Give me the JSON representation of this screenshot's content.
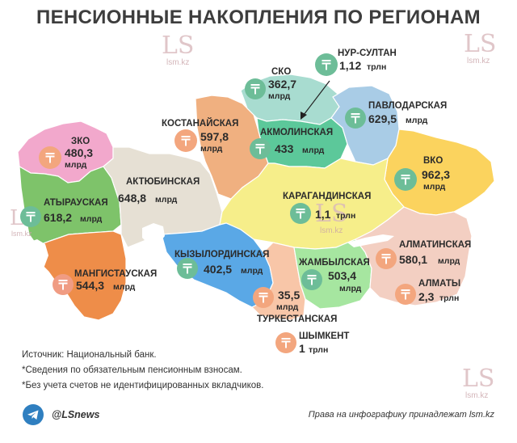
{
  "title": "ПЕНСИОННЫЕ НАКОПЛЕНИЯ ПО РЕГИОНАМ",
  "regions": {
    "zko": {
      "name": "ЗКО",
      "value": "480,3",
      "unit": "млрд"
    },
    "atyrau": {
      "name": "АТЫРАУСКАЯ",
      "value": "618,2",
      "unit": "млрд"
    },
    "mangystau": {
      "name": "МАНГИСТАУСКАЯ",
      "value": "544,3",
      "unit": "млрд"
    },
    "aktobe": {
      "name": "АКТЮБИНСКАЯ",
      "value": "648,8",
      "unit": "млрд"
    },
    "kostanay": {
      "name": "КОСТАНАЙСКАЯ",
      "value": "597,8",
      "unit": "млрд"
    },
    "sko": {
      "name": "СКО",
      "value": "362,7",
      "unit": "млрд"
    },
    "nur_sultan": {
      "name": "НУР-СУЛТАН",
      "value": "1,12",
      "unit": "трлн"
    },
    "akmola": {
      "name": "АКМОЛИНСКАЯ",
      "value": "433",
      "unit": "млрд"
    },
    "pavlodar": {
      "name": "ПАВЛОДАРСКАЯ",
      "value": "629,5",
      "unit": "млрд"
    },
    "vko": {
      "name": "ВКО",
      "value": "962,3",
      "unit": "млрд"
    },
    "karaganda": {
      "name": "КАРАГАНДИНСКАЯ",
      "value": "1,1",
      "unit": "трлн"
    },
    "kyzylorda": {
      "name": "КЫЗЫЛОРДИНСКАЯ",
      "value": "402,5",
      "unit": "млрд"
    },
    "zhambyl": {
      "name": "ЖАМБЫЛСКАЯ",
      "value": "503,4",
      "unit": "млрд"
    },
    "almaty_region": {
      "name": "АЛМАТИНСКАЯ",
      "value": "580,1",
      "unit": "млрд"
    },
    "almaty_city": {
      "name": "АЛМАТЫ",
      "value": "2,3",
      "unit": "трлн"
    },
    "turkestan": {
      "name": "ТУРКЕСТАНСКАЯ",
      "value": "35,5",
      "unit": "млрд"
    },
    "shymkent": {
      "name": "ШЫМКЕНТ",
      "value": "1",
      "unit": "трлн"
    }
  },
  "colors": {
    "zko": "#f2a8cc",
    "atyrau": "#7ec36a",
    "mangystau": "#ee8d49",
    "aktobe": "#e6e0d4",
    "kostanay": "#f0b080",
    "sko": "#a8dcd0",
    "akmola": "#5cc89a",
    "pavlodar": "#a9cce6",
    "vko": "#fbd35e",
    "karaganda": "#f6ee8a",
    "kyzylorda": "#5aa8e6",
    "zhambyl": "#a6e6a0",
    "almaty_region": "#f3cfc2",
    "turkestan": "#f8c6a8",
    "tenge_badge": "#6dbd98",
    "tenge_badge_orange": "#f3a67e",
    "tenge_badge_salmon": "#f09c83"
  },
  "sources": {
    "line1": "Источник: Национальный банк.",
    "line2": "*Сведения по обязательным пенсионным взносам.",
    "line3": "*Без учета счетов не идентифицированных вкладчиков."
  },
  "footer": {
    "handle": "@LSnews",
    "rights": "Права на инфографику принадлежат lsm.kz",
    "icon": "telegram-icon"
  },
  "watermark": {
    "logo": "LS",
    "site": "lsm.kz"
  }
}
